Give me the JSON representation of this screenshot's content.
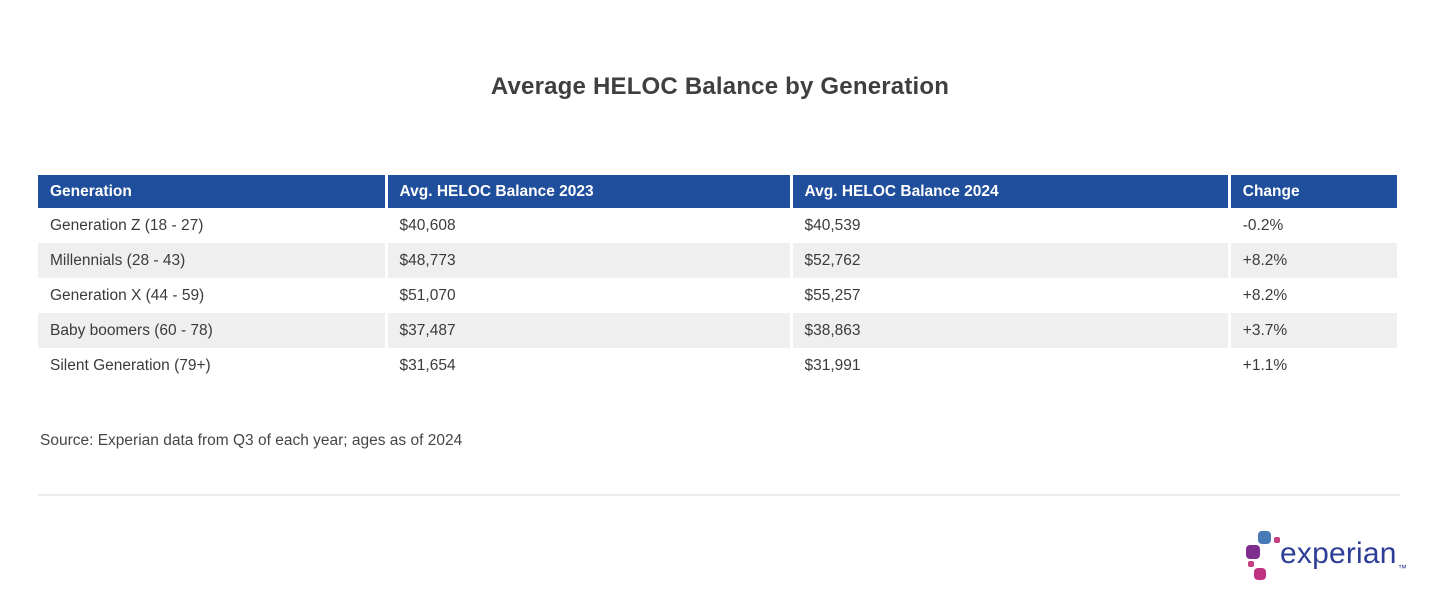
{
  "title": "Average HELOC Balance by Generation",
  "table": {
    "columns": [
      "Generation",
      "Avg. HELOC Balance 2023",
      "Avg. HELOC Balance 2024",
      "Change"
    ],
    "rows": [
      {
        "generation": "Generation Z (18 - 27)",
        "balance_2023": "$40,608",
        "balance_2024": "$40,539",
        "change": "-0.2%"
      },
      {
        "generation": "Millennials (28 - 43)",
        "balance_2023": "$48,773",
        "balance_2024": "$52,762",
        "change": "+8.2%"
      },
      {
        "generation": "Generation X (44 - 59)",
        "balance_2023": "$51,070",
        "balance_2024": "$55,257",
        "change": "+8.2%"
      },
      {
        "generation": "Baby boomers (60 - 78)",
        "balance_2023": "$37,487",
        "balance_2024": "$38,863",
        "change": "+3.7%"
      },
      {
        "generation": "Silent Generation (79+)",
        "balance_2023": "$31,654",
        "balance_2024": "$31,991",
        "change": "+1.1%"
      }
    ]
  },
  "source_note": "Source: Experian data from Q3 of each year; ages as of 2024",
  "logo": {
    "wordmark": "experian",
    "trademark": "™"
  },
  "colors": {
    "header_bg": "#1f4e9c",
    "header_text": "#ffffff",
    "row_stripe": "#efefef",
    "title_text": "#3f3f3f",
    "body_text": "#3b3b3b",
    "divider": "#ececec",
    "logo_wordmark": "#2e3d96",
    "logo_blue": "#4a79b7",
    "logo_purple": "#7d2e8c",
    "logo_magenta": "#bf3181",
    "logo_pink": "#c63e84"
  },
  "chart_data": {
    "type": "table",
    "title": "Average HELOC Balance by Generation",
    "columns": [
      "Generation",
      "Avg. HELOC Balance 2023",
      "Avg. HELOC Balance 2024",
      "Change"
    ],
    "rows": [
      [
        "Generation Z (18 - 27)",
        40608,
        40539,
        "-0.2%"
      ],
      [
        "Millennials (28 - 43)",
        48773,
        52762,
        "+8.2%"
      ],
      [
        "Generation X (44 - 59)",
        51070,
        55257,
        "+8.2%"
      ],
      [
        "Baby boomers (60 - 78)",
        37487,
        38863,
        "+3.7%"
      ],
      [
        "Silent Generation (79+)",
        31654,
        31991,
        "+1.1%"
      ]
    ],
    "source": "Source: Experian data from Q3 of each year; ages as of 2024",
    "layout_hints": {
      "striped_rows": true,
      "header_background": "#1f4e9c",
      "stripe_background": "#efefef"
    }
  }
}
